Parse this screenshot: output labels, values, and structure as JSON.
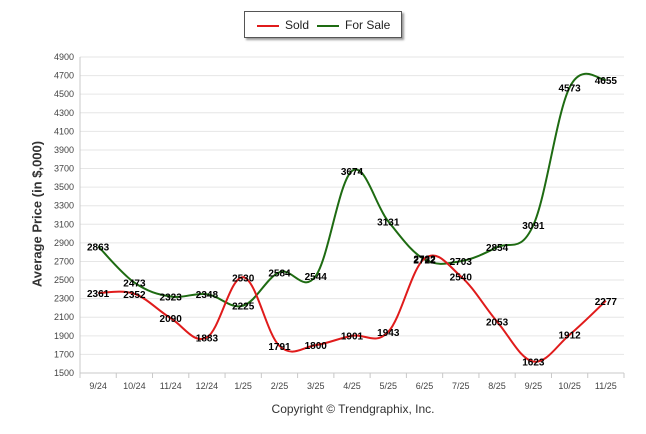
{
  "legend": {
    "sold_label": "Sold",
    "for_sale_label": "For Sale"
  },
  "credit": "Copyright © Trendgraphix, Inc.",
  "colors": {
    "sold": "#e01b1b",
    "for_sale": "#1e6b12",
    "grid": "#e6e6e6",
    "axis": "#c8c8c8",
    "tick_text": "#444444",
    "label_text": "#000000"
  },
  "chart_data": {
    "type": "line",
    "title": "",
    "xlabel": "",
    "ylabel": "Average Price (in $,000)",
    "categories": [
      "9/24",
      "10/24",
      "11/24",
      "12/24",
      "1/25",
      "2/25",
      "3/25",
      "4/25",
      "5/25",
      "6/25",
      "7/25",
      "8/25",
      "9/25",
      "10/25",
      "11/25"
    ],
    "yticks": [
      1500,
      1700,
      1900,
      2100,
      2300,
      2500,
      2700,
      2900,
      3100,
      3300,
      3500,
      3700,
      3900,
      4100,
      4300,
      4500,
      4700,
      4900
    ],
    "ylim": [
      1500,
      4900
    ],
    "series": [
      {
        "name": "Sold",
        "values": [
          2361,
          2352,
          2090,
          1883,
          2530,
          1791,
          1800,
          1901,
          1943,
          2732,
          2540,
          2053,
          1623,
          1912,
          2277
        ]
      },
      {
        "name": "For Sale",
        "values": [
          2863,
          2473,
          2323,
          2348,
          2225,
          2584,
          2544,
          3674,
          3131,
          2722,
          2703,
          2854,
          3091,
          4573,
          4655
        ]
      }
    ],
    "legend_position": "top-center",
    "grid": true
  }
}
